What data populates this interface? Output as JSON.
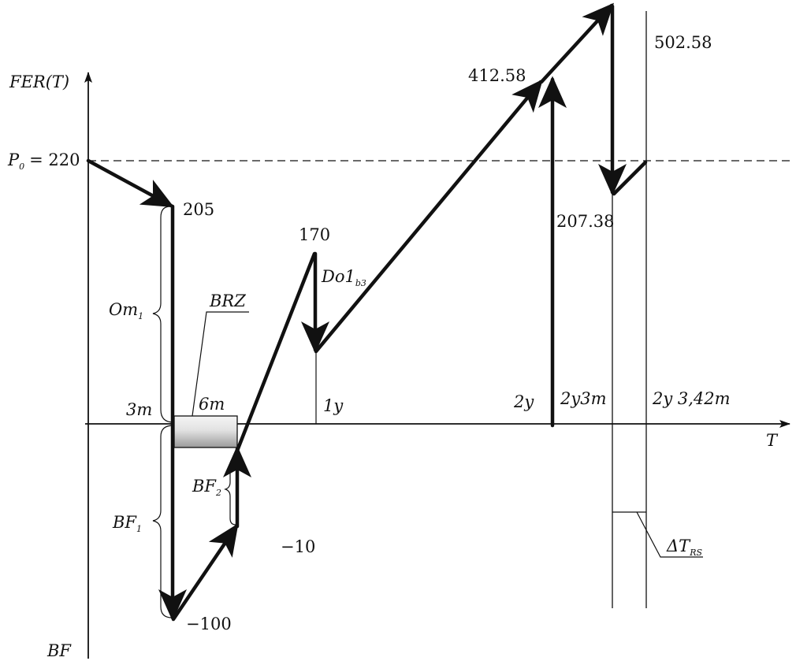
{
  "axes": {
    "y_label": "FER(T)",
    "x_label": "T",
    "bottom_label": "BF"
  },
  "levels": {
    "p0_text": "P",
    "p0_sub": "0",
    "p0_value": "= 220",
    "v205": "205",
    "v170": "170",
    "v412": "412.58",
    "v502": "502.58",
    "v207": "207.38",
    "v_neg100": "−100",
    "v_neg10": "−10"
  },
  "time_marks": {
    "t3m": "3m",
    "t6m": "6m",
    "t1y": "1y",
    "t2y": "2y",
    "t2y3m": "2y3m",
    "t2y342m": "2y 3,42m"
  },
  "braces": {
    "om1_text": "Om",
    "om1_sub": "1",
    "bf1_text": "BF",
    "bf1_sub": "1",
    "bf2_text": "BF",
    "bf2_sub": "2"
  },
  "callouts": {
    "brz": "BRZ",
    "do_text": "Do1",
    "do_sub": "b3",
    "delta_text": "ΔT",
    "delta_sub": "RS"
  }
}
